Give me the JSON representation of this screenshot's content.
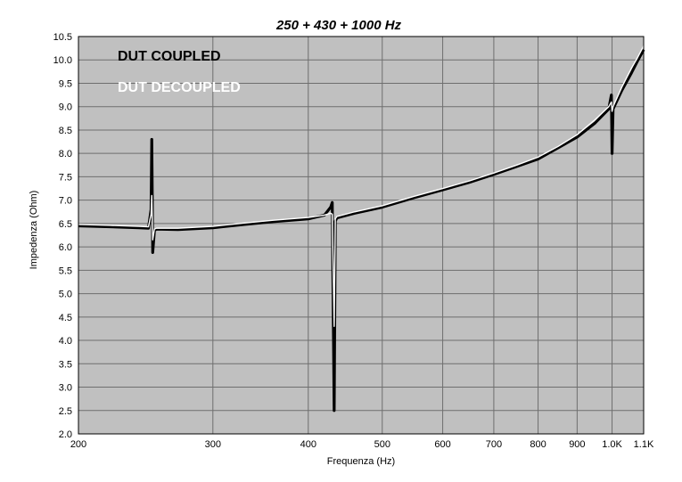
{
  "chart_data": {
    "type": "line",
    "title": "250 + 430 + 1000 Hz",
    "xlabel": "Frequenza (Hz)",
    "ylabel": "Impedenza (Ohm)",
    "x_scale": "log",
    "xlim": [
      200,
      1100
    ],
    "ylim": [
      2.0,
      10.5
    ],
    "grid": true,
    "x_ticks": [
      {
        "value": 200,
        "label": "200"
      },
      {
        "value": 300,
        "label": "300"
      },
      {
        "value": 400,
        "label": "400"
      },
      {
        "value": 500,
        "label": "500"
      },
      {
        "value": 600,
        "label": "600"
      },
      {
        "value": 700,
        "label": "700"
      },
      {
        "value": 800,
        "label": "800"
      },
      {
        "value": 900,
        "label": "900"
      },
      {
        "value": 1000,
        "label": "1.0K"
      },
      {
        "value": 1100,
        "label": "1.1K"
      }
    ],
    "y_ticks": [
      {
        "value": 2.0,
        "label": "2.0"
      },
      {
        "value": 2.5,
        "label": "2.5"
      },
      {
        "value": 3.0,
        "label": "3.0"
      },
      {
        "value": 3.5,
        "label": "3.5"
      },
      {
        "value": 4.0,
        "label": "4.0"
      },
      {
        "value": 4.5,
        "label": "4.5"
      },
      {
        "value": 5.0,
        "label": "5.0"
      },
      {
        "value": 5.5,
        "label": "5.5"
      },
      {
        "value": 6.0,
        "label": "6.0"
      },
      {
        "value": 6.5,
        "label": "6.5"
      },
      {
        "value": 7.0,
        "label": "7.0"
      },
      {
        "value": 7.5,
        "label": "7.5"
      },
      {
        "value": 8.0,
        "label": "8.0"
      },
      {
        "value": 8.5,
        "label": "8.5"
      },
      {
        "value": 9.0,
        "label": "9.0"
      },
      {
        "value": 9.5,
        "label": "9.5"
      },
      {
        "value": 10.0,
        "label": "10.0"
      },
      {
        "value": 10.5,
        "label": "10.5"
      }
    ],
    "legend_position": "top-left",
    "colors": {
      "plot_background": "#c0c0c0",
      "grid": "#6e6e6e"
    },
    "series": [
      {
        "name": "DUT COUPLED",
        "color": "#000000",
        "points": [
          [
            200,
            6.45
          ],
          [
            220,
            6.43
          ],
          [
            240,
            6.41
          ],
          [
            247,
            6.4
          ],
          [
            249,
            6.8
          ],
          [
            249.5,
            8.3
          ],
          [
            250.2,
            5.88
          ],
          [
            251.5,
            6.35
          ],
          [
            253,
            6.38
          ],
          [
            270,
            6.37
          ],
          [
            300,
            6.41
          ],
          [
            330,
            6.48
          ],
          [
            360,
            6.54
          ],
          [
            400,
            6.6
          ],
          [
            420,
            6.68
          ],
          [
            428,
            6.85
          ],
          [
            430,
            6.95
          ],
          [
            432.5,
            2.5
          ],
          [
            434,
            6.55
          ],
          [
            436,
            6.62
          ],
          [
            460,
            6.72
          ],
          [
            500,
            6.85
          ],
          [
            550,
            7.05
          ],
          [
            600,
            7.22
          ],
          [
            650,
            7.38
          ],
          [
            700,
            7.55
          ],
          [
            750,
            7.72
          ],
          [
            800,
            7.88
          ],
          [
            850,
            8.12
          ],
          [
            900,
            8.35
          ],
          [
            950,
            8.65
          ],
          [
            990,
            8.95
          ],
          [
            998,
            9.25
          ],
          [
            1000,
            8.0
          ],
          [
            1003,
            8.95
          ],
          [
            1030,
            9.35
          ],
          [
            1060,
            9.72
          ],
          [
            1080,
            9.98
          ],
          [
            1100,
            10.22
          ]
        ]
      },
      {
        "name": "DUT DECOUPLED",
        "color": "#ffffff",
        "points": [
          [
            200,
            6.48
          ],
          [
            220,
            6.46
          ],
          [
            240,
            6.44
          ],
          [
            247,
            6.43
          ],
          [
            249,
            6.7
          ],
          [
            249.5,
            7.1
          ],
          [
            250.2,
            6.15
          ],
          [
            251.5,
            6.38
          ],
          [
            253,
            6.4
          ],
          [
            270,
            6.4
          ],
          [
            300,
            6.44
          ],
          [
            330,
            6.51
          ],
          [
            360,
            6.57
          ],
          [
            400,
            6.63
          ],
          [
            420,
            6.68
          ],
          [
            428,
            6.72
          ],
          [
            430,
            6.7
          ],
          [
            432.5,
            4.3
          ],
          [
            434,
            6.6
          ],
          [
            436,
            6.65
          ],
          [
            460,
            6.75
          ],
          [
            500,
            6.88
          ],
          [
            550,
            7.08
          ],
          [
            600,
            7.25
          ],
          [
            650,
            7.41
          ],
          [
            700,
            7.58
          ],
          [
            750,
            7.75
          ],
          [
            800,
            7.92
          ],
          [
            850,
            8.15
          ],
          [
            900,
            8.4
          ],
          [
            950,
            8.72
          ],
          [
            990,
            9.0
          ],
          [
            998,
            9.1
          ],
          [
            1000,
            8.9
          ],
          [
            1003,
            9.0
          ],
          [
            1030,
            9.42
          ],
          [
            1060,
            9.82
          ],
          [
            1080,
            10.05
          ],
          [
            1100,
            10.3
          ]
        ]
      }
    ]
  }
}
